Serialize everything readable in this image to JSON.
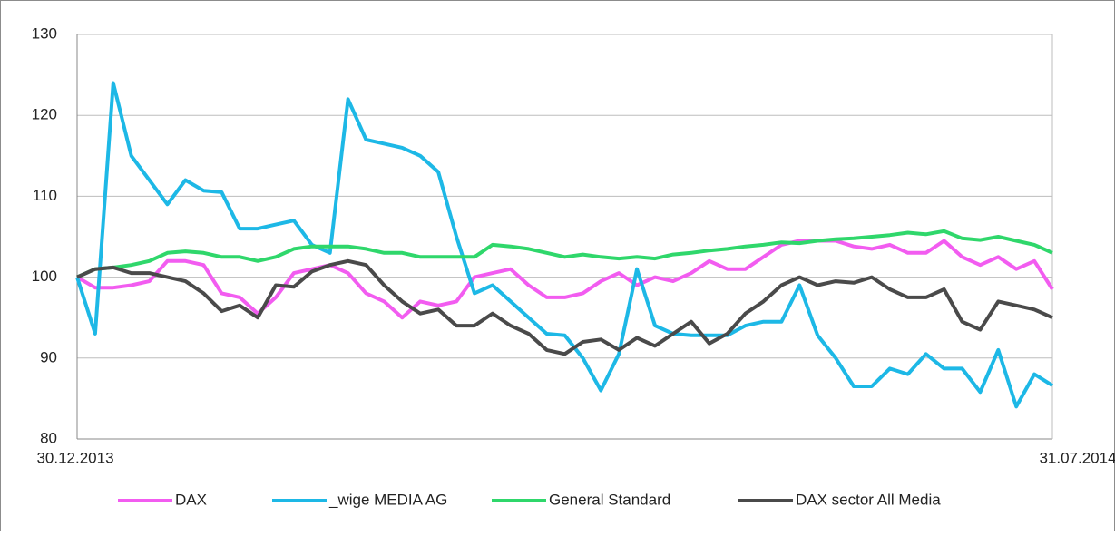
{
  "chart_data": {
    "type": "line",
    "categories": [
      "30.12.2013",
      null,
      null,
      null,
      null,
      null,
      null,
      null,
      null,
      null,
      null,
      null,
      null,
      null,
      null,
      null,
      null,
      null,
      null,
      null,
      null,
      null,
      null,
      null,
      null,
      null,
      null,
      null,
      null,
      null,
      null,
      null,
      null,
      null,
      null,
      null,
      null,
      null,
      null,
      null,
      null,
      null,
      null,
      null,
      null,
      null,
      null,
      null,
      null,
      null,
      null,
      null,
      null,
      null,
      "31.07.2014"
    ],
    "series": [
      {
        "name": "DAX",
        "color": "#f25cf0",
        "values": [
          100,
          98.7,
          98.7,
          99,
          99.5,
          102,
          102,
          101.5,
          98,
          97.5,
          95.5,
          97.5,
          100.5,
          101,
          101.5,
          100.5,
          98,
          97,
          95,
          97,
          96.5,
          97,
          100,
          100.5,
          101,
          99,
          97.5,
          97.5,
          98,
          99.5,
          100.5,
          99,
          100,
          99.5,
          100.5,
          102,
          101,
          101,
          102.5,
          104,
          104.5,
          104.5,
          104.5,
          103.8,
          103.5,
          104,
          103,
          103,
          104.5,
          102.5,
          101.5,
          102.5,
          101,
          102,
          98.5
        ]
      },
      {
        "name": "_wige MEDIA AG",
        "color": "#1db8e6",
        "values": [
          100,
          93,
          124,
          115,
          112,
          109,
          112,
          110.7,
          110.5,
          106,
          106,
          106.5,
          107,
          104,
          103,
          122,
          117,
          116.5,
          116,
          115,
          113,
          105,
          98,
          99,
          97,
          95,
          93,
          92.8,
          90,
          86,
          90.5,
          101,
          94,
          93,
          92.8,
          92.8,
          92.8,
          94,
          94.5,
          94.5,
          99,
          92.8,
          90,
          86.5,
          86.5,
          88.7,
          88,
          90.5,
          88.7,
          88.7,
          85.8,
          91,
          84,
          88,
          86.6
        ]
      },
      {
        "name": "General Standard",
        "color": "#2fd76b",
        "values": [
          100,
          101,
          101.2,
          101.5,
          102,
          103,
          103.2,
          103,
          102.5,
          102.5,
          102,
          102.5,
          103.5,
          103.8,
          103.8,
          103.8,
          103.5,
          103,
          103,
          102.5,
          102.5,
          102.5,
          102.5,
          104,
          103.8,
          103.5,
          103,
          102.5,
          102.8,
          102.5,
          102.3,
          102.5,
          102.3,
          102.8,
          103,
          103.3,
          103.5,
          103.8,
          104,
          104.3,
          104.2,
          104.5,
          104.7,
          104.8,
          105,
          105.2,
          105.5,
          105.3,
          105.7,
          104.8,
          104.6,
          105,
          104.5,
          104,
          103
        ]
      },
      {
        "name": "DAX sector All Media",
        "color": "#4a4a4a",
        "values": [
          100,
          101,
          101.2,
          100.5,
          100.5,
          100,
          99.5,
          98,
          95.8,
          96.5,
          95,
          99,
          98.8,
          100.7,
          101.5,
          102,
          101.5,
          99,
          97,
          95.5,
          96,
          94,
          94,
          95.5,
          94,
          93,
          91,
          90.5,
          92,
          92.3,
          91,
          92.5,
          91.5,
          93,
          94.5,
          91.8,
          93,
          95.5,
          97,
          99,
          100,
          99,
          99.5,
          99.3,
          100,
          98.5,
          97.5,
          97.5,
          98.5,
          94.5,
          93.5,
          97,
          96.5,
          96,
          95
        ]
      }
    ],
    "ylim": [
      80,
      130
    ],
    "yticks": [
      80,
      90,
      100,
      110,
      120,
      130
    ],
    "grid": true,
    "legend": "bottom"
  }
}
